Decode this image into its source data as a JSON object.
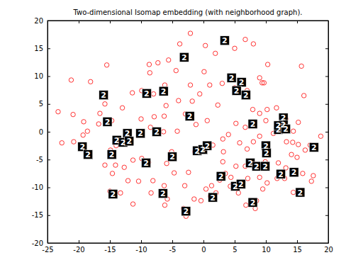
{
  "chart_data": {
    "type": "scatter",
    "title": "Two-dimensional Isomap embedding (with neighborhood graph).",
    "color": "#ff0000",
    "marker": "circle",
    "xlim": [
      -25,
      20
    ],
    "ylim": [
      -20,
      20
    ],
    "xticks": [
      -25,
      -20,
      -15,
      -10,
      -5,
      0,
      5,
      10,
      15,
      20
    ],
    "yticks": [
      -20,
      -15,
      -10,
      -5,
      0,
      5,
      10,
      15,
      20
    ],
    "x": [
      -2.1,
      3.2,
      6.7,
      8.0,
      5.0,
      0.3,
      1.9,
      -3.8,
      -5.6,
      -7.3,
      -8.7,
      -8.6,
      -15.5,
      -21.2,
      -18.1,
      -15.8,
      -16.6,
      -14.7,
      -16.8,
      -19.2,
      -20.9,
      -23.3,
      -19.3,
      -20.8,
      -22.7,
      -18.6,
      -13.0,
      -11.4,
      -9.9,
      -8.0,
      -6.2,
      -4.4,
      -2.1,
      -0.6,
      -1.8,
      -4.0,
      -6.0,
      -6.3,
      -7.9,
      -10.0,
      -8.5,
      -6.4,
      -4.2,
      -2.9,
      -1.2,
      0.6,
      2.3,
      1.0,
      0.1,
      3.0,
      -14.0,
      -14.9,
      -15.8,
      -14.1,
      -14.6,
      -12.7,
      -11.3,
      -9.9,
      -8.8,
      -12.1,
      -10.4,
      -8.1,
      -8.4,
      -6.3,
      -3.0,
      -4.7,
      -5.9,
      -5.1,
      -15.0,
      -13.3,
      -11.3,
      -6.2,
      -5.8,
      -3.2,
      -2.8,
      -2.4,
      -1.5,
      -0.4,
      1.3,
      1.1,
      0.4,
      -1.4,
      0.1,
      1.5,
      3.2,
      3.1,
      3.5,
      4.4,
      2.6,
      2.0,
      5.0,
      7.0,
      9.0,
      9.4,
      10.3,
      9.7,
      7.9,
      9.0,
      10.2,
      10.0,
      11.7,
      6.7,
      5.2,
      4.0,
      3.1,
      5.8,
      7.0,
      8.0,
      9.0,
      11.2,
      12.4,
      13.2,
      15.2,
      16.1,
      15.7,
      13.3,
      14.4,
      14.3,
      15.2,
      16.3,
      17.1,
      18.8,
      14.1,
      12.0,
      9.9,
      7.9,
      6.7,
      5.2,
      5.6,
      7.1,
      9.0,
      10.2,
      11.8,
      13.2,
      15.0,
      15.9,
      17.3,
      17.6,
      14.4,
      9.5,
      8.5,
      6.8,
      5.6,
      4.3,
      8.3,
      13.0
    ],
    "y": [
      17.7,
      16.7,
      16.6,
      15.8,
      15.0,
      15.5,
      14.1,
      15.8,
      12.9,
      12.4,
      12.1,
      10.6,
      12.0,
      9.3,
      9.0,
      5.0,
      3.3,
      2.0,
      1.4,
      1.8,
      3.1,
      3.6,
      -0.6,
      -1.8,
      -2.0,
      0.1,
      4.3,
      7.0,
      7.4,
      6.8,
      8.4,
      11.0,
      8.4,
      6.8,
      5.5,
      5.6,
      4.7,
      2.8,
      2.7,
      2.3,
      0.8,
      0.0,
      0.1,
      3.2,
      1.3,
      2.0,
      4.8,
      8.4,
      10.8,
      8.7,
      -2.5,
      -3.3,
      -6.0,
      -6.0,
      -7.5,
      -6.4,
      -5.1,
      -4.8,
      -5.5,
      -8.8,
      -8.9,
      -8.8,
      -11.0,
      -9.7,
      -9.7,
      -7.4,
      -5.7,
      -3.6,
      -10.7,
      -11.0,
      -13.0,
      -13.2,
      -12.1,
      -13.8,
      -15.2,
      -7.3,
      -12.1,
      -12.4,
      -9.7,
      -11.6,
      -10.3,
      -3.6,
      -2.7,
      -2.4,
      -3.6,
      -5.4,
      -7.5,
      -8.2,
      -8.7,
      -11.0,
      7.9,
      7.4,
      9.7,
      8.8,
      12.1,
      8.8,
      4.0,
      3.3,
      4.0,
      2.0,
      4.3,
      0.8,
      1.5,
      -0.5,
      -1.3,
      -2.0,
      -3.1,
      -1.8,
      -0.8,
      -0.3,
      0.8,
      2.3,
      1.7,
      6.5,
      11.8,
      -1.8,
      0.1,
      -1.9,
      -2.3,
      -3.3,
      -2.4,
      -0.8,
      -4.1,
      -5.6,
      -5.4,
      -5.5,
      -6.2,
      -6.2,
      -9.7,
      -8.4,
      -8.2,
      -9.2,
      -8.4,
      -6.5,
      -4.6,
      -7.5,
      -8.9,
      -7.9,
      -10.9,
      -10.3,
      -12.4,
      -13.2,
      -11.0,
      -9.8,
      -13.8,
      -8.4
    ],
    "annotations": [
      {
        "x": 3.4,
        "y": 16.4,
        "text": "2"
      },
      {
        "x": -3.1,
        "y": 13.4,
        "text": "2"
      },
      {
        "x": 4.5,
        "y": 9.7,
        "text": "2"
      },
      {
        "x": 6.1,
        "y": 8.9,
        "text": "2"
      },
      {
        "x": 5.3,
        "y": 7.4,
        "text": "2"
      },
      {
        "x": 6.8,
        "y": 6.6,
        "text": "2"
      },
      {
        "x": -16.0,
        "y": 6.6,
        "text": "2"
      },
      {
        "x": -9.1,
        "y": 6.9,
        "text": "2"
      },
      {
        "x": -6.4,
        "y": 7.3,
        "text": "2"
      },
      {
        "x": -15.4,
        "y": 1.8,
        "text": "2"
      },
      {
        "x": -2.2,
        "y": 2.8,
        "text": "2"
      },
      {
        "x": -10.1,
        "y": -0.3,
        "text": "2"
      },
      {
        "x": -7.5,
        "y": 0.0,
        "text": "2"
      },
      {
        "x": -12.2,
        "y": -0.3,
        "text": "2"
      },
      {
        "x": -13.9,
        "y": -1.5,
        "text": "2"
      },
      {
        "x": -12.9,
        "y": -1.9,
        "text": "2"
      },
      {
        "x": -11.9,
        "y": -1.7,
        "text": "2"
      },
      {
        "x": -19.4,
        "y": -2.7,
        "text": "2"
      },
      {
        "x": -18.5,
        "y": -4.1,
        "text": "2"
      },
      {
        "x": -14.7,
        "y": -4.1,
        "text": "2"
      },
      {
        "x": -5.0,
        "y": -4.5,
        "text": "2"
      },
      {
        "x": -9.2,
        "y": -5.6,
        "text": "2"
      },
      {
        "x": -1.0,
        "y": -3.4,
        "text": "2"
      },
      {
        "x": -0.1,
        "y": -3.2,
        "text": "2"
      },
      {
        "x": 0.6,
        "y": -2.5,
        "text": "2"
      },
      {
        "x": -14.5,
        "y": -11.2,
        "text": "2"
      },
      {
        "x": -6.5,
        "y": -11.1,
        "text": "2"
      },
      {
        "x": -2.8,
        "y": -14.3,
        "text": "2"
      },
      {
        "x": 1.5,
        "y": -11.8,
        "text": "2"
      },
      {
        "x": 2.8,
        "y": -8.0,
        "text": "2"
      },
      {
        "x": 5.1,
        "y": -9.8,
        "text": "2"
      },
      {
        "x": 6.0,
        "y": -9.4,
        "text": "2"
      },
      {
        "x": 7.9,
        "y": -12.7,
        "text": "2"
      },
      {
        "x": 7.5,
        "y": -5.6,
        "text": "2"
      },
      {
        "x": 8.5,
        "y": -6.2,
        "text": "2"
      },
      {
        "x": 10.0,
        "y": -2.5,
        "text": "2"
      },
      {
        "x": 9.9,
        "y": -6.2,
        "text": "2"
      },
      {
        "x": 7.9,
        "y": 1.4,
        "text": "2"
      },
      {
        "x": 12.8,
        "y": 2.5,
        "text": "2"
      },
      {
        "x": 12.8,
        "y": 1.3,
        "text": "2"
      },
      {
        "x": 12.0,
        "y": 0.4,
        "text": "2"
      },
      {
        "x": 12.0,
        "y": 1.1,
        "text": "2"
      },
      {
        "x": 13.2,
        "y": 0.5,
        "text": "2"
      },
      {
        "x": 10.1,
        "y": -3.8,
        "text": "2"
      },
      {
        "x": 12.4,
        "y": -7.6,
        "text": "2"
      },
      {
        "x": 14.5,
        "y": -7.3,
        "text": "2"
      },
      {
        "x": 15.5,
        "y": -10.9,
        "text": "2"
      },
      {
        "x": 17.7,
        "y": -2.8,
        "text": "2"
      }
    ]
  }
}
